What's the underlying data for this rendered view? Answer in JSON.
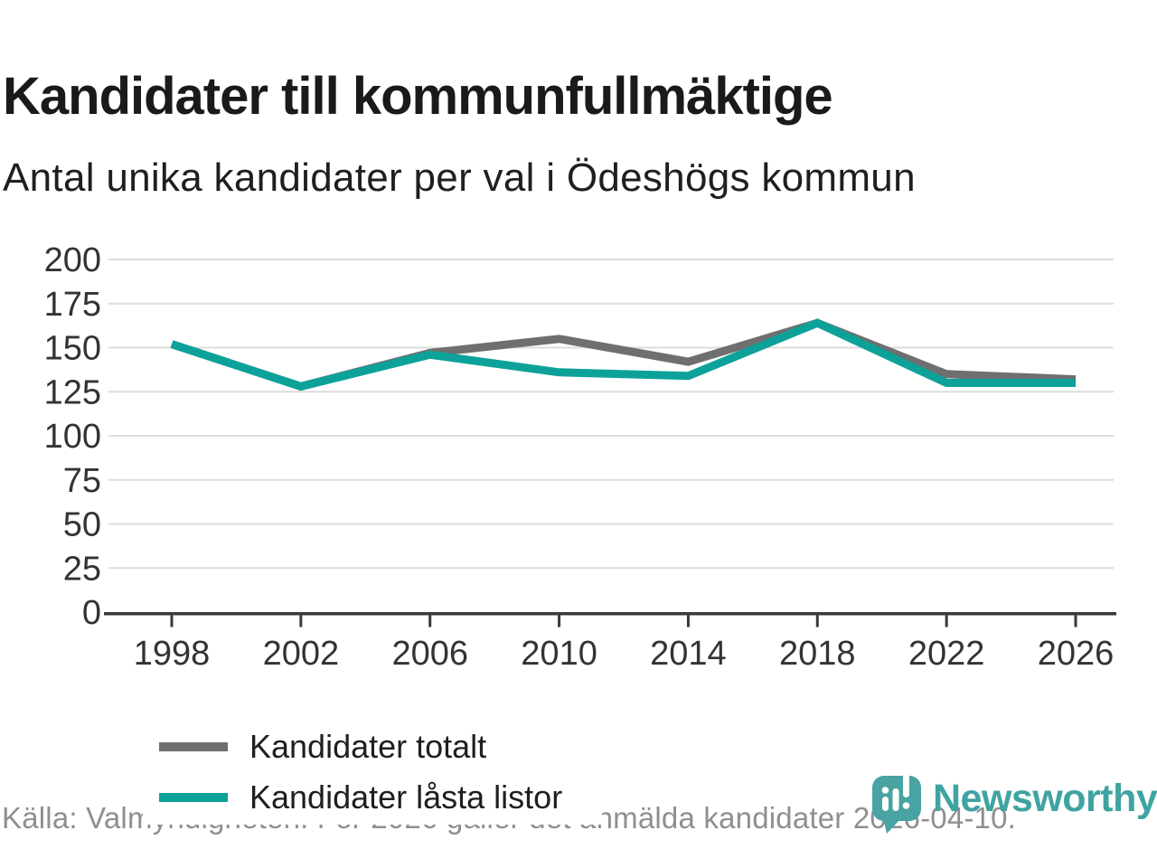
{
  "header": {
    "title": "Kandidater till kommunfullmäktige",
    "subtitle": "Antal unika kandidater per val i Ödeshögs kommun"
  },
  "chart_data": {
    "type": "line",
    "x": [
      1998,
      2002,
      2006,
      2010,
      2014,
      2018,
      2022,
      2026
    ],
    "series": [
      {
        "name": "Kandidater totalt",
        "color": "#6f6f6f",
        "values": [
          152,
          128,
          147,
          155,
          142,
          164,
          135,
          132
        ]
      },
      {
        "name": "Kandidater låsta listor",
        "color": "#0ca29a",
        "values": [
          152,
          128,
          146,
          136,
          134,
          164,
          130,
          130
        ]
      }
    ],
    "ylim": [
      0,
      200
    ],
    "yticks": [
      0,
      25,
      50,
      75,
      100,
      125,
      150,
      175,
      200
    ],
    "grid": "horizontal",
    "legend_position": "inside-left-middle",
    "xlabel": "",
    "ylabel": ""
  },
  "footer": {
    "source": "Källa: Valmyndigheten. För 2026 gäller det anmälda kandidater 2026-04-10.",
    "brand": "Newsworthy"
  },
  "colors": {
    "grid": "#dcdcdc",
    "axis": "#3a3a3a",
    "tick_label": "#333333",
    "title": "#1a1a1a",
    "source_text": "#8f8f8f",
    "brand_teal": "#3fa3a1"
  }
}
